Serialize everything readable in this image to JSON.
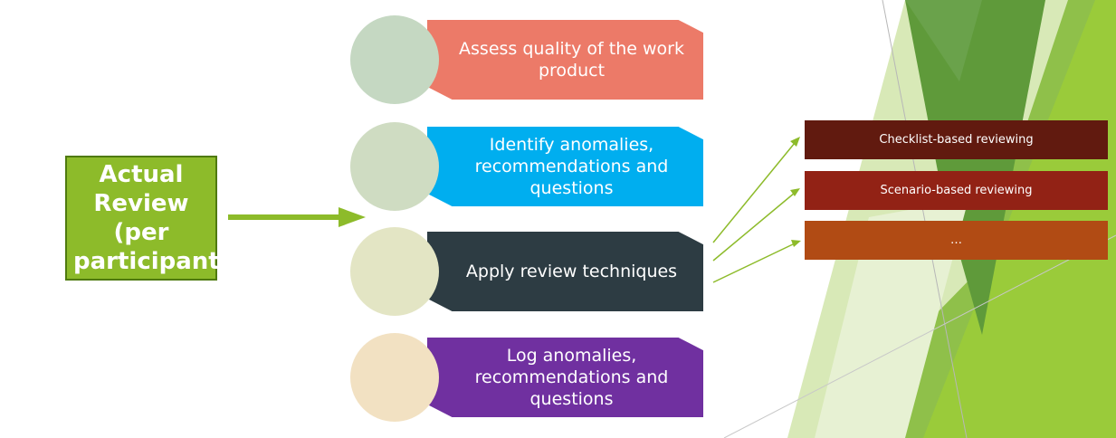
{
  "main": {
    "label": "Actual Review (per participant)"
  },
  "steps": [
    {
      "label": "Assess quality of the work product",
      "color": "#ec7a68",
      "circle_color": "#c5d8c2"
    },
    {
      "label": "Identify anomalies, recommendations and questions",
      "color": "#00aeef",
      "circle_color": "#cfdcc2"
    },
    {
      "label": "Apply review techniques",
      "color": "#2d3c43",
      "circle_color": "#e3e5c4"
    },
    {
      "label": "Log anomalies, recommendations and questions",
      "color": "#7030a0",
      "circle_color": "#f2e1c2"
    }
  ],
  "techniques": [
    {
      "label": "Checklist-based reviewing",
      "color": "#611a0f"
    },
    {
      "label": "Scenario-based reviewing",
      "color": "#922215"
    },
    {
      "label": "…",
      "color": "#b14b14"
    }
  ],
  "colors": {
    "main_box": "#8dbb2a",
    "arrow": "#8dbb2a",
    "connector": "#8dbb2a"
  }
}
